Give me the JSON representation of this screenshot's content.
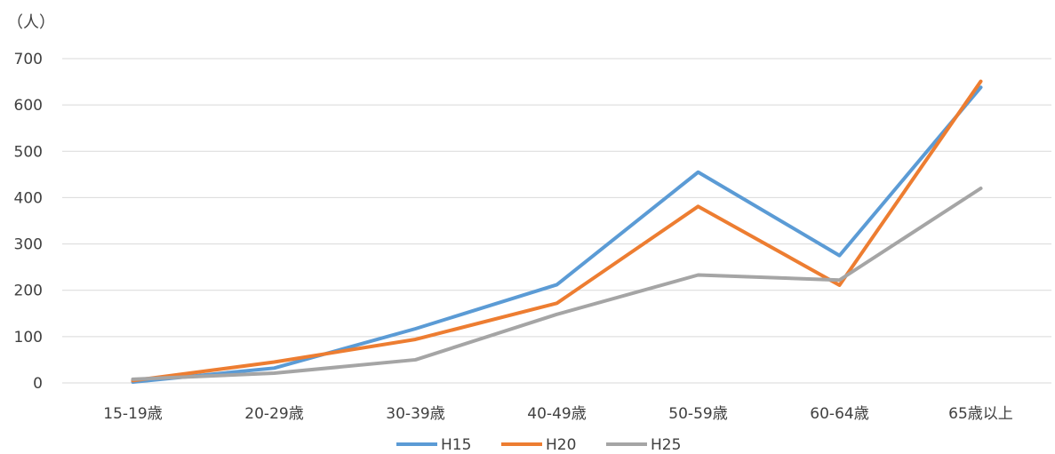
{
  "chart_data": {
    "type": "line",
    "title": "",
    "ylabel": "（人）",
    "xlabel": "",
    "ylim": [
      0,
      700
    ],
    "yticks": [
      0,
      100,
      200,
      300,
      400,
      500,
      600,
      700
    ],
    "grid": true,
    "legend_position": "bottom",
    "categories": [
      "15-19歳",
      "20-29歳",
      "30-39歳",
      "40-49歳",
      "50-59歳",
      "60-64歳",
      "65歳以上"
    ],
    "series": [
      {
        "name": "H15",
        "color": "#5B9BD5",
        "values": [
          2,
          32,
          117,
          212,
          455,
          275,
          638
        ]
      },
      {
        "name": "H20",
        "color": "#ED7D31",
        "values": [
          5,
          45,
          94,
          172,
          381,
          211,
          651
        ]
      },
      {
        "name": "H25",
        "color": "#A5A5A5",
        "values": [
          8,
          21,
          50,
          148,
          233,
          222,
          420
        ]
      }
    ]
  }
}
